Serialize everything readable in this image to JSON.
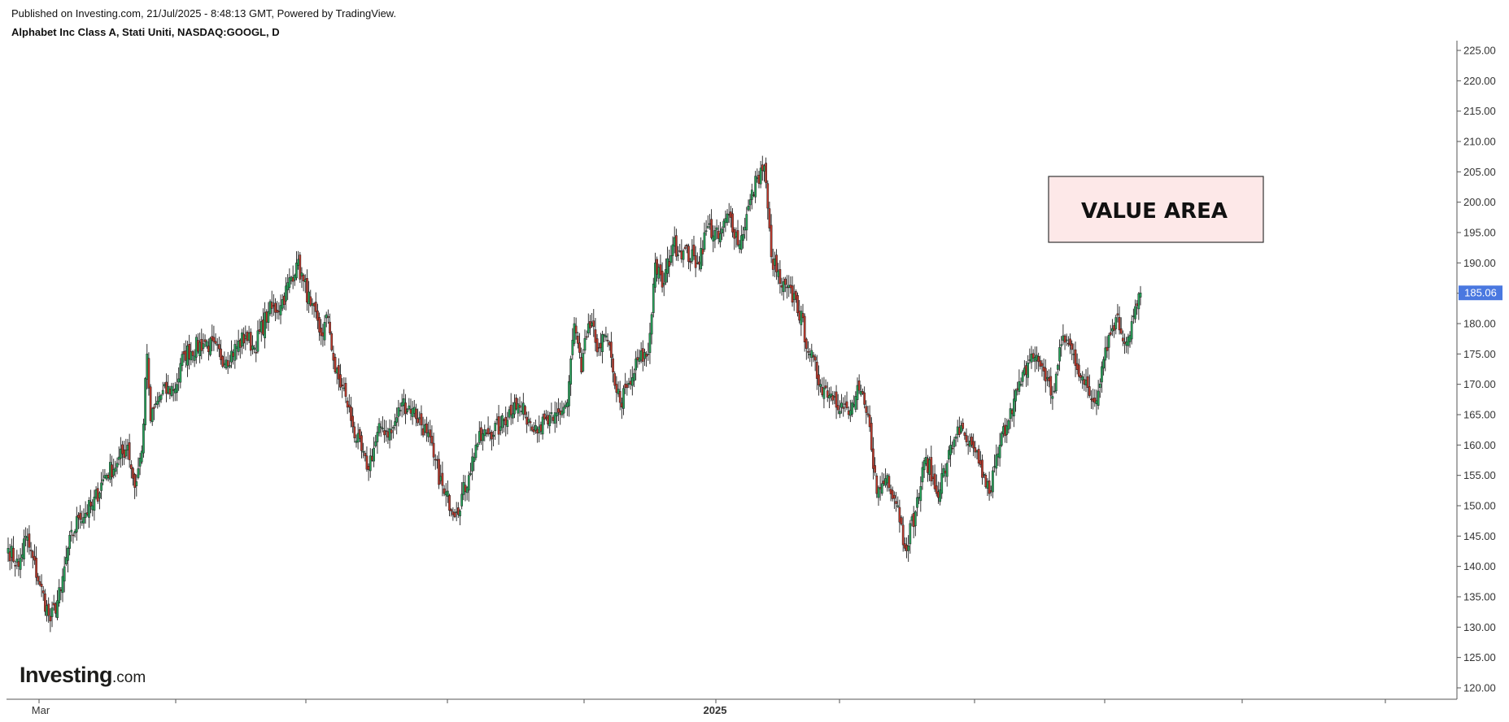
{
  "header": {
    "published": "Published on Investing.com, 21/Jul/2025 - 8:48:13 GMT, Powered by TradingView.",
    "instrument": "Alphabet Inc Class A, Stati Uniti, NASDAQ:GOOGL, D"
  },
  "logo": {
    "brand": "Investing",
    "tld": ".com"
  },
  "annotation": {
    "label": "VALUE AREA",
    "fill": "#fde8e8",
    "stroke": "#333333"
  },
  "colors": {
    "up": "#26a65b",
    "down": "#c0392b",
    "price_tag": "#4a78e0",
    "axis": "#555555"
  },
  "chart_data": {
    "type": "candlestick",
    "ylim": [
      120,
      225
    ],
    "y_ticks": [
      "120.00",
      "125.00",
      "130.00",
      "135.00",
      "140.00",
      "145.00",
      "150.00",
      "155.00",
      "160.00",
      "165.00",
      "170.00",
      "175.00",
      "180.00",
      "185.00",
      "190.00",
      "195.00",
      "200.00",
      "205.00",
      "210.00",
      "215.00",
      "220.00",
      "225.00"
    ],
    "x_labels": [
      "Mar",
      "2025"
    ],
    "last_price": "185.06",
    "value_area": {
      "low": 193.5,
      "high": 204.5
    },
    "waypoints": [
      [
        0,
        143
      ],
      [
        6,
        140
      ],
      [
        10,
        145
      ],
      [
        18,
        137
      ],
      [
        24,
        131
      ],
      [
        30,
        136
      ],
      [
        34,
        143
      ],
      [
        40,
        148
      ],
      [
        48,
        150
      ],
      [
        55,
        155
      ],
      [
        62,
        157
      ],
      [
        68,
        160
      ],
      [
        72,
        153
      ],
      [
        76,
        159
      ],
      [
        79,
        175
      ],
      [
        81,
        164
      ],
      [
        86,
        168
      ],
      [
        96,
        170
      ],
      [
        100,
        175
      ],
      [
        112,
        177
      ],
      [
        124,
        174
      ],
      [
        135,
        178
      ],
      [
        140,
        176
      ],
      [
        148,
        182
      ],
      [
        155,
        183
      ],
      [
        164,
        190
      ],
      [
        168,
        187
      ],
      [
        172,
        183
      ],
      [
        178,
        178
      ],
      [
        182,
        181
      ],
      [
        186,
        172
      ],
      [
        192,
        168
      ],
      [
        196,
        163
      ],
      [
        204,
        156
      ],
      [
        212,
        163
      ],
      [
        218,
        162
      ],
      [
        224,
        167
      ],
      [
        230,
        166
      ],
      [
        238,
        162
      ],
      [
        242,
        158
      ],
      [
        248,
        152
      ],
      [
        255,
        149
      ],
      [
        262,
        155
      ],
      [
        266,
        160
      ],
      [
        272,
        162
      ],
      [
        280,
        163
      ],
      [
        288,
        167
      ],
      [
        294,
        165
      ],
      [
        302,
        163
      ],
      [
        310,
        164
      ],
      [
        318,
        167
      ],
      [
        322,
        180
      ],
      [
        326,
        172
      ],
      [
        330,
        180
      ],
      [
        336,
        176
      ],
      [
        340,
        178
      ],
      [
        344,
        172
      ],
      [
        348,
        167
      ],
      [
        354,
        170
      ],
      [
        358,
        174
      ],
      [
        364,
        175
      ],
      [
        368,
        190
      ],
      [
        372,
        186
      ],
      [
        378,
        193
      ],
      [
        384,
        192
      ],
      [
        392,
        190
      ],
      [
        398,
        196
      ],
      [
        404,
        194
      ],
      [
        410,
        198
      ],
      [
        416,
        193
      ],
      [
        420,
        198
      ],
      [
        426,
        204
      ],
      [
        430,
        206
      ],
      [
        434,
        191
      ],
      [
        440,
        186
      ],
      [
        448,
        184
      ],
      [
        456,
        175
      ],
      [
        462,
        170
      ],
      [
        470,
        168
      ],
      [
        478,
        165
      ],
      [
        484,
        169
      ],
      [
        490,
        163
      ],
      [
        494,
        152
      ],
      [
        500,
        155
      ],
      [
        506,
        150
      ],
      [
        510,
        143
      ],
      [
        516,
        149
      ],
      [
        522,
        158
      ],
      [
        528,
        152
      ],
      [
        534,
        157
      ],
      [
        540,
        163
      ],
      [
        546,
        160
      ],
      [
        552,
        157
      ],
      [
        558,
        152
      ],
      [
        564,
        160
      ],
      [
        570,
        166
      ],
      [
        576,
        170
      ],
      [
        582,
        175
      ],
      [
        588,
        173
      ],
      [
        594,
        168
      ],
      [
        600,
        178
      ],
      [
        606,
        175
      ],
      [
        612,
        170
      ],
      [
        618,
        167
      ],
      [
        624,
        176
      ],
      [
        630,
        181
      ],
      [
        636,
        177
      ],
      [
        642,
        183
      ],
      [
        644,
        185.06
      ]
    ]
  }
}
